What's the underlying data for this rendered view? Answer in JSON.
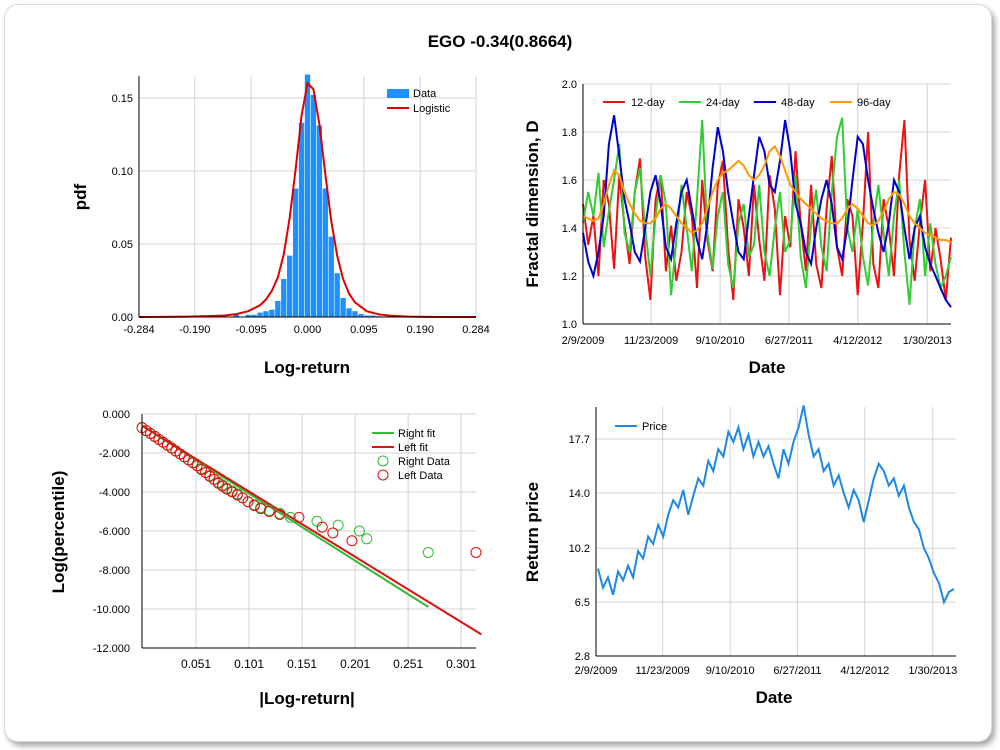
{
  "title": "EGO -0.34(0.8664)",
  "colors": {
    "data_bar": "#1e90ff",
    "logistic": "#dd0000",
    "d12": "#ee1111",
    "d24": "#33cc33",
    "d48": "#0000cc",
    "d96": "#ff9900",
    "right": "#33bb33",
    "left": "#dd1111",
    "price": "#1e88e5",
    "grid": "#d3d3d3"
  },
  "chart_data": [
    {
      "type": "bar",
      "name": "histogram",
      "xlabel": "Log-return",
      "ylabel": "pdf",
      "xlim": [
        -0.284,
        0.284
      ],
      "ylim": [
        0,
        0.165
      ],
      "xticks": [
        "-0.284",
        "-0.190",
        "-0.095",
        "0.000",
        "0.095",
        "0.190",
        "0.284"
      ],
      "yticks": [
        "0.00",
        "0.05",
        "0.10",
        "0.15"
      ],
      "legend": [
        "Data",
        "Logistic"
      ],
      "bin_centers": [
        -0.2,
        -0.19,
        -0.18,
        -0.17,
        -0.16,
        -0.15,
        -0.14,
        -0.13,
        -0.12,
        -0.11,
        -0.1,
        -0.09,
        -0.08,
        -0.07,
        -0.06,
        -0.05,
        -0.04,
        -0.03,
        -0.02,
        -0.01,
        0.0,
        0.01,
        0.02,
        0.03,
        0.04,
        0.05,
        0.06,
        0.07,
        0.08,
        0.09,
        0.1,
        0.11,
        0.12,
        0.13,
        0.14,
        0.15,
        0.16
      ],
      "values": [
        0.0005,
        0.0,
        0.0,
        0.0,
        0.0,
        0.0,
        0.0,
        0.0,
        0.0015,
        0.0,
        0.0015,
        0.0015,
        0.003,
        0.004,
        0.005,
        0.011,
        0.026,
        0.042,
        0.088,
        0.133,
        0.166,
        0.152,
        0.131,
        0.088,
        0.055,
        0.03,
        0.013,
        0.006,
        0.004,
        0.002,
        0.001,
        0.001,
        0.0005,
        0.0,
        0.0005,
        0.0,
        0.0005
      ],
      "fit_x": [
        -0.284,
        -0.24,
        -0.2,
        -0.17,
        -0.14,
        -0.12,
        -0.1,
        -0.08,
        -0.07,
        -0.06,
        -0.05,
        -0.04,
        -0.03,
        -0.02,
        -0.01,
        0.0,
        0.01,
        0.02,
        0.03,
        0.04,
        0.05,
        0.06,
        0.07,
        0.08,
        0.1,
        0.12,
        0.14,
        0.17,
        0.2,
        0.24,
        0.284
      ],
      "fit_y": [
        0.0,
        0.0001,
        0.0003,
        0.0006,
        0.001,
        0.002,
        0.004,
        0.008,
        0.012,
        0.018,
        0.027,
        0.043,
        0.068,
        0.101,
        0.138,
        0.16,
        0.156,
        0.132,
        0.098,
        0.066,
        0.042,
        0.026,
        0.016,
        0.01,
        0.004,
        0.0018,
        0.0008,
        0.0003,
        0.0001,
        0.0,
        0.0
      ]
    },
    {
      "type": "line",
      "name": "fractal",
      "xlabel": "Date",
      "ylabel": "Fractal dimension, D",
      "ylim": [
        1.0,
        2.0
      ],
      "yticks": [
        "1.0",
        "1.2",
        "1.4",
        "1.6",
        "1.8",
        "2.0"
      ],
      "xticks": [
        "2/9/2009",
        "11/23/2009",
        "9/10/2010",
        "6/27/2011",
        "4/12/2012",
        "1/30/2013"
      ],
      "x_range": [
        "2/9/2009",
        "5/10/2013"
      ],
      "series": [
        {
          "name": "12-day",
          "values": [
            1.5,
            1.33,
            1.45,
            1.2,
            1.6,
            1.5,
            1.23,
            1.62,
            1.41,
            1.25,
            1.55,
            1.69,
            1.28,
            1.1,
            1.52,
            1.62,
            1.22,
            1.41,
            1.18,
            1.3,
            1.55,
            1.45,
            1.15,
            1.6,
            1.35,
            1.22,
            1.58,
            1.68,
            1.32,
            1.1,
            1.52,
            1.4,
            1.2,
            1.58,
            1.35,
            1.18,
            1.62,
            1.48,
            1.12,
            1.45,
            1.32,
            1.72,
            1.42,
            1.22,
            1.58,
            1.25,
            1.15,
            1.48,
            1.7,
            1.32,
            1.2,
            1.52,
            1.45,
            1.12,
            1.42,
            1.8,
            1.25,
            1.15,
            1.52,
            1.4,
            1.2,
            1.62,
            1.85,
            1.35,
            1.18,
            1.42,
            1.6,
            1.22,
            1.4,
            1.27,
            1.1,
            1.36
          ]
        },
        {
          "name": "24-day",
          "values": [
            1.42,
            1.55,
            1.45,
            1.63,
            1.32,
            1.47,
            1.6,
            1.75,
            1.38,
            1.3,
            1.55,
            1.65,
            1.4,
            1.2,
            1.45,
            1.62,
            1.5,
            1.12,
            1.35,
            1.58,
            1.4,
            1.22,
            1.52,
            1.85,
            1.38,
            1.23,
            1.45,
            1.55,
            1.25,
            1.15,
            1.42,
            1.5,
            1.28,
            1.33,
            1.58,
            1.3,
            1.2,
            1.4,
            1.55,
            1.3,
            1.35,
            1.62,
            1.28,
            1.15,
            1.42,
            1.56,
            1.32,
            1.22,
            1.55,
            1.78,
            1.86,
            1.4,
            1.3,
            1.48,
            1.28,
            1.16,
            1.42,
            1.58,
            1.38,
            1.2,
            1.45,
            1.6,
            1.3,
            1.08,
            1.4,
            1.52,
            1.2,
            1.42,
            1.25,
            1.15,
            1.2,
            1.28
          ]
        },
        {
          "name": "48-day",
          "values": [
            1.38,
            1.26,
            1.2,
            1.3,
            1.45,
            1.75,
            1.87,
            1.7,
            1.52,
            1.42,
            1.3,
            1.26,
            1.4,
            1.55,
            1.62,
            1.5,
            1.32,
            1.27,
            1.42,
            1.55,
            1.6,
            1.48,
            1.35,
            1.27,
            1.42,
            1.65,
            1.82,
            1.72,
            1.55,
            1.42,
            1.3,
            1.27,
            1.45,
            1.62,
            1.78,
            1.72,
            1.58,
            1.55,
            1.68,
            1.85,
            1.72,
            1.5,
            1.42,
            1.3,
            1.25,
            1.4,
            1.52,
            1.6,
            1.5,
            1.32,
            1.27,
            1.4,
            1.6,
            1.78,
            1.75,
            1.6,
            1.48,
            1.38,
            1.3,
            1.42,
            1.6,
            1.55,
            1.4,
            1.27,
            1.4,
            1.45,
            1.32,
            1.25,
            1.2,
            1.15,
            1.1,
            1.07
          ]
        },
        {
          "name": "96-day",
          "values": [
            1.45,
            1.44,
            1.43,
            1.44,
            1.5,
            1.58,
            1.64,
            1.62,
            1.55,
            1.5,
            1.46,
            1.43,
            1.42,
            1.42,
            1.44,
            1.48,
            1.5,
            1.48,
            1.45,
            1.42,
            1.4,
            1.38,
            1.39,
            1.42,
            1.48,
            1.55,
            1.6,
            1.63,
            1.64,
            1.66,
            1.68,
            1.66,
            1.62,
            1.6,
            1.62,
            1.66,
            1.72,
            1.74,
            1.7,
            1.64,
            1.58,
            1.55,
            1.52,
            1.5,
            1.48,
            1.46,
            1.44,
            1.43,
            1.42,
            1.42,
            1.44,
            1.48,
            1.5,
            1.48,
            1.45,
            1.42,
            1.41,
            1.43,
            1.47,
            1.52,
            1.55,
            1.54,
            1.5,
            1.45,
            1.42,
            1.4,
            1.38,
            1.37,
            1.36,
            1.35,
            1.35,
            1.34
          ]
        }
      ]
    },
    {
      "type": "scatter",
      "name": "tail",
      "xlabel": "|Log-return|",
      "ylabel": "Log(percentile)",
      "xlim": [
        0,
        0.315
      ],
      "ylim": [
        -12,
        0
      ],
      "xticks": [
        "0.051",
        "0.101",
        "0.151",
        "0.201",
        "0.251",
        "0.301"
      ],
      "xtick_values": [
        0.051,
        0.101,
        0.151,
        0.201,
        0.251,
        0.301
      ],
      "yticks": [
        "0.000",
        "-2.000",
        "-4.000",
        "-6.000",
        "-8.000",
        "-10.000",
        "-12.000"
      ],
      "legend": [
        "Right fit",
        "Left fit",
        "Right Data",
        "Left Data"
      ],
      "right_fit": {
        "x": [
          0.0,
          0.27
        ],
        "y": [
          -0.6,
          -9.9
        ]
      },
      "left_fit": {
        "x": [
          0.0,
          0.32
        ],
        "y": [
          -0.6,
          -11.3
        ]
      },
      "right_data": {
        "x": [
          0.0,
          0.004,
          0.008,
          0.012,
          0.016,
          0.02,
          0.024,
          0.028,
          0.032,
          0.036,
          0.04,
          0.044,
          0.048,
          0.052,
          0.056,
          0.06,
          0.064,
          0.068,
          0.072,
          0.076,
          0.08,
          0.085,
          0.09,
          0.095,
          0.1,
          0.106,
          0.112,
          0.12,
          0.13,
          0.14,
          0.165,
          0.185,
          0.205,
          0.212,
          0.27
        ],
        "y": [
          -0.7,
          -0.85,
          -1.0,
          -1.15,
          -1.3,
          -1.45,
          -1.6,
          -1.75,
          -1.9,
          -2.05,
          -2.2,
          -2.35,
          -2.5,
          -2.65,
          -2.8,
          -3.0,
          -3.15,
          -3.35,
          -3.5,
          -3.65,
          -3.8,
          -3.95,
          -4.1,
          -4.3,
          -4.5,
          -4.65,
          -4.8,
          -4.95,
          -5.1,
          -5.3,
          -5.5,
          -5.7,
          -6.0,
          -6.4,
          -7.1
        ]
      },
      "left_data": {
        "x": [
          0.0,
          0.004,
          0.008,
          0.012,
          0.016,
          0.02,
          0.024,
          0.028,
          0.032,
          0.036,
          0.04,
          0.044,
          0.048,
          0.052,
          0.056,
          0.06,
          0.064,
          0.068,
          0.072,
          0.076,
          0.08,
          0.085,
          0.09,
          0.095,
          0.1,
          0.106,
          0.112,
          0.12,
          0.13,
          0.148,
          0.17,
          0.18,
          0.198,
          0.315
        ],
        "y": [
          -0.7,
          -0.85,
          -1.0,
          -1.15,
          -1.3,
          -1.45,
          -1.6,
          -1.75,
          -1.9,
          -2.05,
          -2.2,
          -2.35,
          -2.5,
          -2.65,
          -2.85,
          -3.0,
          -3.2,
          -3.35,
          -3.55,
          -3.7,
          -3.85,
          -4.0,
          -4.15,
          -4.3,
          -4.5,
          -4.7,
          -4.85,
          -5.0,
          -5.15,
          -5.3,
          -5.8,
          -6.1,
          -6.5,
          -7.1
        ]
      }
    },
    {
      "type": "line",
      "name": "price",
      "xlabel": "Date",
      "ylabel": "Return price",
      "ylim": [
        2.8,
        19.9
      ],
      "yticks": [
        "2.8",
        "6.5",
        "10.2",
        "14.0",
        "17.7"
      ],
      "ytick_values": [
        2.8,
        6.5,
        10.2,
        14.0,
        17.7
      ],
      "xticks": [
        "2/9/2009",
        "11/23/2009",
        "9/10/2010",
        "6/27/2011",
        "4/12/2012",
        "1/30/2013"
      ],
      "x_range": [
        "2/9/2009",
        "5/10/2013"
      ],
      "legend": [
        "Price"
      ],
      "values": [
        8.8,
        7.5,
        8.2,
        7.0,
        8.6,
        8.0,
        9.0,
        8.2,
        10.0,
        9.5,
        11.0,
        10.5,
        11.8,
        11.0,
        12.5,
        13.5,
        13.0,
        14.2,
        12.5,
        13.8,
        15.0,
        14.5,
        16.2,
        15.5,
        17.0,
        16.5,
        18.2,
        17.5,
        18.5,
        17.0,
        18.0,
        16.5,
        17.5,
        16.5,
        17.2,
        16.0,
        15.0,
        17.0,
        16.0,
        17.5,
        18.5,
        20.0,
        18.0,
        16.5,
        17.0,
        15.5,
        16.0,
        14.5,
        15.2,
        14.0,
        13.0,
        14.2,
        13.5,
        12.0,
        13.5,
        15.0,
        16.0,
        15.5,
        14.5,
        15.0,
        13.8,
        14.5,
        13.0,
        12.0,
        11.5,
        10.2,
        9.5,
        8.5,
        7.8,
        6.5,
        7.2,
        7.4
      ]
    }
  ]
}
